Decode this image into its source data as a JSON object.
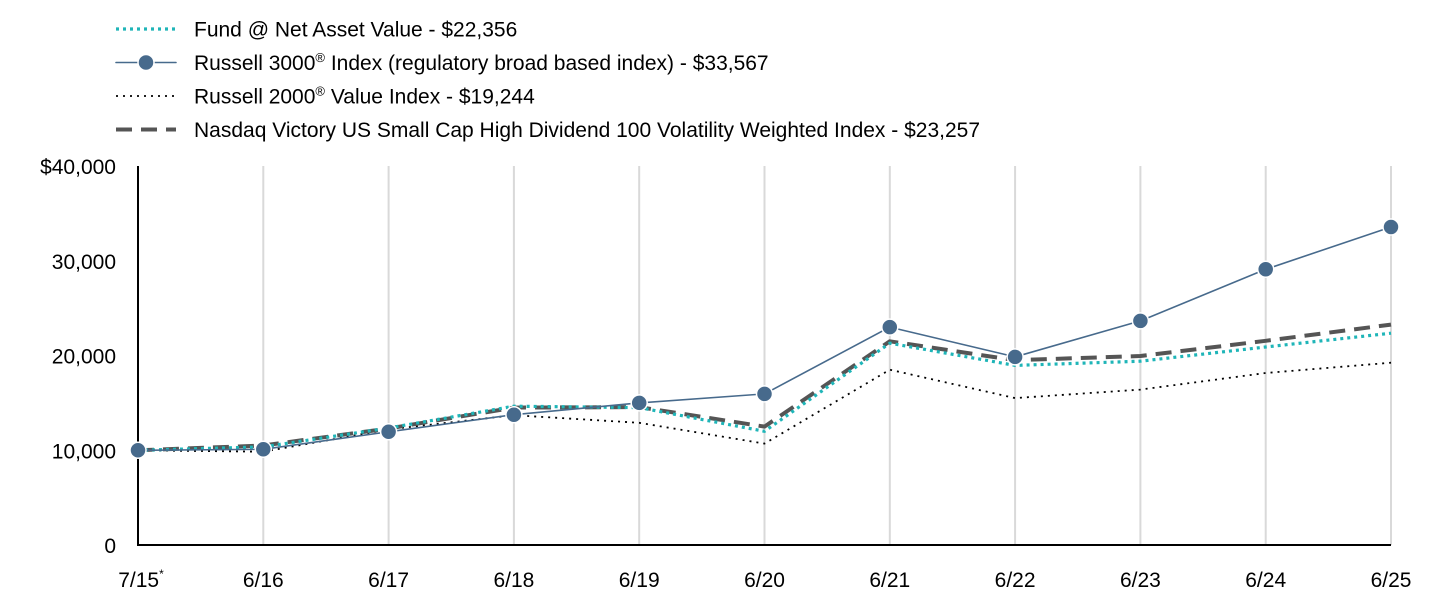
{
  "chart_data": {
    "type": "line",
    "title": "",
    "xlabel": "",
    "ylabel": "",
    "categories": [
      "7/15",
      "6/16",
      "6/17",
      "6/18",
      "6/19",
      "6/20",
      "6/21",
      "6/22",
      "6/23",
      "6/24",
      "6/25"
    ],
    "first_category_marker": "*",
    "ylim": [
      0,
      40000
    ],
    "y_ticks": [
      0,
      10000,
      20000,
      30000,
      40000
    ],
    "y_tick_labels": [
      "0",
      "10,000",
      "20,000",
      "30,000",
      "$40,000"
    ],
    "grid": "vertical",
    "legend_position": "top-left",
    "series": [
      {
        "name": "Fund @ Net Asset Value - $22,356",
        "legend_parts": [
          "Fund @ Net Asset Value - $22,356"
        ],
        "style": "dotted",
        "color": "#1fb5b8",
        "values": [
          10000,
          10350,
          12350,
          14650,
          14500,
          12000,
          21300,
          18950,
          19400,
          20900,
          22356
        ]
      },
      {
        "name": "Russell 3000® Index (regulatory broad based index) - $33,567",
        "legend_parts": [
          "Russell 3000",
          "®",
          " Index (regulatory broad based index) - $33,567"
        ],
        "style": "solid-marker",
        "color": "#476a8c",
        "values": [
          10000,
          10100,
          11950,
          13750,
          15000,
          15950,
          23000,
          19850,
          23650,
          29100,
          33567
        ]
      },
      {
        "name": "Russell 2000® Value Index - $19,244",
        "legend_parts": [
          "Russell 2000",
          "®",
          " Value Index - $19,244"
        ],
        "style": "fine-dotted",
        "color": "#000000",
        "values": [
          10000,
          9850,
          12200,
          13700,
          12900,
          10700,
          18500,
          15500,
          16400,
          18150,
          19244
        ]
      },
      {
        "name": "Nasdaq Victory US Small Cap High Dividend 100 Volatility Weighted Index - $23,257",
        "legend_parts": [
          "Nasdaq Victory US Small Cap High Dividend 100 Volatility Weighted Index - $23,257"
        ],
        "style": "dashed",
        "color": "#555555",
        "values": [
          10000,
          10500,
          12300,
          14500,
          14550,
          12500,
          21500,
          19500,
          19950,
          21550,
          23257
        ]
      }
    ]
  }
}
